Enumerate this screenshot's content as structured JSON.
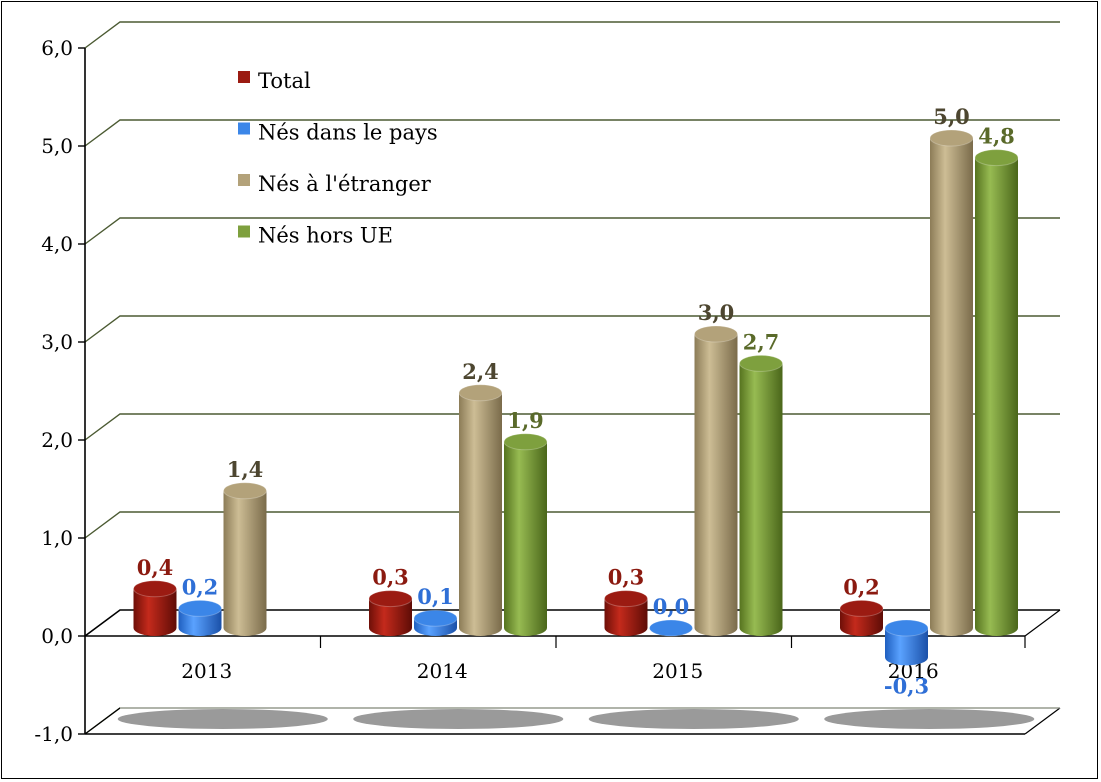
{
  "chart_data": {
    "type": "bar",
    "categories": [
      "2013",
      "2014",
      "2015",
      "2016"
    ],
    "series": [
      {
        "name": "Total",
        "color": "#9b1b12",
        "label_color": "#8b1a10",
        "values": [
          0.4,
          0.3,
          0.3,
          0.2
        ],
        "labels": [
          "0,4",
          "0,3",
          "0,3",
          "0,2"
        ]
      },
      {
        "name": "Nés dans le pays",
        "color": "#3b86e8",
        "label_color": "#2f6fd6",
        "values": [
          0.2,
          0.1,
          0.0,
          -0.3
        ],
        "labels": [
          "0,2",
          "0,1",
          "0,0",
          "-0,3"
        ]
      },
      {
        "name": "Nés à l'étranger",
        "color": "#b3a27a",
        "label_color": "#4d4630",
        "values": [
          1.4,
          2.4,
          3.0,
          5.0
        ],
        "labels": [
          "1,4",
          "2,4",
          "3,0",
          "5,0"
        ]
      },
      {
        "name": "Nés hors UE",
        "color": "#7ea03e",
        "label_color": "#5a6a2a",
        "values": [
          null,
          1.9,
          2.7,
          4.8
        ],
        "labels": [
          "",
          "1,9",
          "2,7",
          "4,8"
        ]
      }
    ],
    "ylim": [
      -1.0,
      6.0
    ],
    "yticks": [
      6.0,
      5.0,
      4.0,
      3.0,
      2.0,
      1.0,
      0.0,
      -1.0
    ],
    "ytick_labels": [
      "6,0",
      "5,0",
      "4,0",
      "3,0",
      "2,0",
      "1,0",
      "0,0",
      "-1,0"
    ],
    "grid": true,
    "legend_position": "top-left",
    "title": "",
    "xlabel": "",
    "ylabel": ""
  }
}
